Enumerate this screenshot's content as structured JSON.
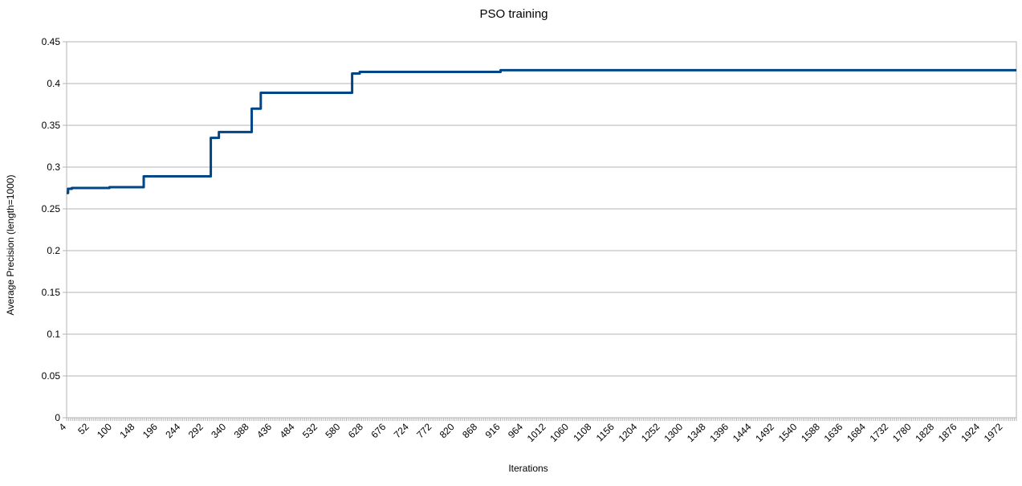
{
  "chart_data": {
    "type": "line",
    "title": "PSO training",
    "xlabel": "Iterations",
    "ylabel": "Average Precision (length=1000)",
    "ylim": [
      0,
      0.45
    ],
    "xlim": [
      4,
      2000
    ],
    "yticks": [
      "0",
      "0.05",
      "0.1",
      "0.15",
      "0.2",
      "0.25",
      "0.3",
      "0.35",
      "0.4",
      "0.45"
    ],
    "xticks": [
      "4",
      "52",
      "100",
      "148",
      "196",
      "244",
      "292",
      "340",
      "388",
      "436",
      "484",
      "532",
      "580",
      "628",
      "676",
      "724",
      "772",
      "820",
      "868",
      "916",
      "964",
      "1012",
      "1060",
      "1108",
      "1156",
      "1204",
      "1252",
      "1300",
      "1348",
      "1396",
      "1444",
      "1492",
      "1540",
      "1588",
      "1636",
      "1684",
      "1732",
      "1780",
      "1828",
      "1876",
      "1924",
      "1972"
    ],
    "grid": true,
    "legend": "none",
    "color": "#004586",
    "series": [
      {
        "x": [
          4,
          7,
          15,
          94,
          166,
          307,
          324,
          393,
          412,
          604,
          620,
          916,
          2000
        ],
        "y": [
          0.269,
          0.274,
          0.275,
          0.276,
          0.289,
          0.335,
          0.342,
          0.37,
          0.389,
          0.412,
          0.414,
          0.416,
          0.416
        ]
      }
    ]
  }
}
